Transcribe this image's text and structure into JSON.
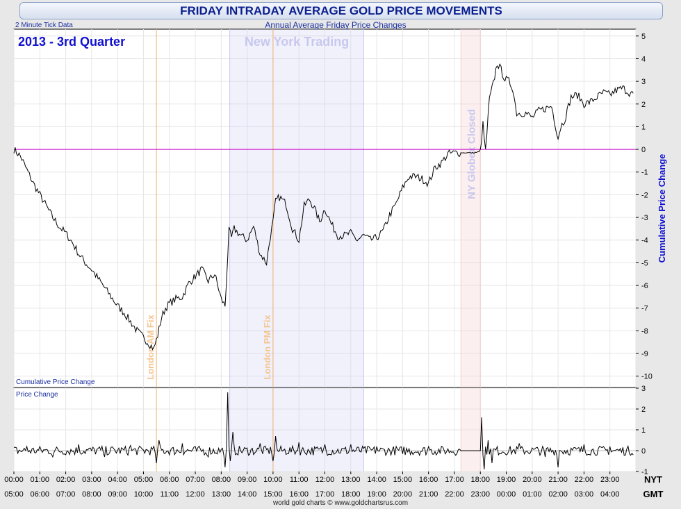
{
  "title": "FRIDAY INTRADAY AVERAGE GOLD PRICE MOVEMENTS",
  "subtitle": "Annual Average Friday Price Changes",
  "tick_note": "2 Minute Tick Data",
  "period_label": "2013 - 3rd Quarter",
  "footer": "world gold charts © www.goldchartsrus.com",
  "tz_top": "NYT",
  "tz_bottom": "GMT",
  "colors": {
    "line": "#000000",
    "zero": "#cc00cc",
    "ny": "#c8c8f0",
    "fix": "#f0b070",
    "globex": "#f0d0d0"
  },
  "bands": [
    {
      "label": "New York Trading",
      "start": 8.33,
      "end": 13.5
    },
    {
      "label": "NY Globex Closed",
      "start": 17.25,
      "end": 18.0
    }
  ],
  "fixes": [
    {
      "label": "London AM Fix",
      "time": 5.5
    },
    {
      "label": "London PM Fix",
      "time": 10.0
    }
  ],
  "nyt_ticks": [
    "00:00",
    "01:00",
    "02:00",
    "03:00",
    "04:00",
    "05:00",
    "06:00",
    "07:00",
    "08:00",
    "09:00",
    "10:00",
    "11:00",
    "12:00",
    "13:00",
    "14:00",
    "15:00",
    "16:00",
    "17:00",
    "18:00",
    "19:00",
    "20:00",
    "21:00",
    "22:00",
    "23:00"
  ],
  "gmt_ticks": [
    "05:00",
    "06:00",
    "07:00",
    "08:00",
    "09:00",
    "10:00",
    "11:00",
    "12:00",
    "13:00",
    "14:00",
    "15:00",
    "16:00",
    "17:00",
    "18:00",
    "19:00",
    "20:00",
    "21:00",
    "22:00",
    "23:00",
    "00:00",
    "01:00",
    "02:00",
    "03:00",
    "04:00"
  ],
  "chart_data": [
    {
      "type": "line",
      "title": "Cumulative Price Change",
      "ylabel": "Cumulative Price Change",
      "xlim": [
        0,
        24
      ],
      "ylim": [
        -10.5,
        5.3
      ],
      "yticks": [
        5,
        4,
        3,
        2,
        1,
        0,
        -1,
        -2,
        -3,
        -4,
        -5,
        -6,
        -7,
        -8,
        -9,
        -10
      ],
      "x": [
        0,
        0.25,
        0.5,
        0.75,
        1,
        1.25,
        1.5,
        1.75,
        2,
        2.25,
        2.5,
        2.75,
        3,
        3.25,
        3.5,
        3.75,
        4,
        4.25,
        4.5,
        4.75,
        5,
        5.25,
        5.4,
        5.55,
        5.7,
        5.85,
        6,
        6.25,
        6.5,
        6.75,
        7,
        7.25,
        7.5,
        7.75,
        8,
        8.15,
        8.3,
        8.4,
        8.5,
        8.75,
        9,
        9.25,
        9.5,
        9.75,
        9.9,
        10,
        10.1,
        10.25,
        10.5,
        10.75,
        11,
        11.2,
        11.4,
        11.6,
        11.8,
        12,
        12.25,
        12.5,
        12.75,
        13,
        13.25,
        13.5,
        13.75,
        14,
        14.25,
        14.5,
        14.75,
        15,
        15.25,
        15.5,
        15.75,
        16,
        16.25,
        16.5,
        16.75,
        17,
        17.25,
        17.5,
        17.75,
        18,
        18.1,
        18.2,
        18.35,
        18.5,
        18.65,
        18.8,
        18.95,
        19.1,
        19.25,
        19.4,
        19.5,
        19.75,
        20,
        20.25,
        20.5,
        20.75,
        21,
        21.1,
        21.25,
        21.5,
        21.75,
        22,
        22.25,
        22.5,
        22.75,
        23,
        23.25,
        23.5,
        23.75,
        23.95
      ],
      "values": [
        0,
        -0.3,
        -0.9,
        -1.5,
        -2.0,
        -2.5,
        -3.0,
        -3.4,
        -3.7,
        -4.1,
        -4.6,
        -5.0,
        -5.3,
        -5.7,
        -6.1,
        -6.5,
        -6.9,
        -7.2,
        -7.6,
        -8.0,
        -8.3,
        -8.6,
        -8.8,
        -8.2,
        -7.4,
        -7.0,
        -6.8,
        -6.6,
        -6.5,
        -5.9,
        -5.6,
        -5.3,
        -5.8,
        -5.5,
        -6.6,
        -6.9,
        -3.6,
        -3.9,
        -3.5,
        -3.8,
        -4.0,
        -3.4,
        -4.6,
        -5.0,
        -3.8,
        -3.2,
        -2.3,
        -2.1,
        -2.4,
        -3.5,
        -4.0,
        -2.5,
        -2.2,
        -2.6,
        -3.2,
        -2.6,
        -3.3,
        -3.8,
        -3.8,
        -3.7,
        -4.0,
        -3.8,
        -4.0,
        -3.9,
        -3.6,
        -2.9,
        -2.4,
        -1.7,
        -1.2,
        -1.2,
        -1.3,
        -1.5,
        -0.8,
        -0.6,
        -0.2,
        -0.15,
        -0.15,
        -0.15,
        -0.15,
        -0.1,
        1.1,
        -0.1,
        2.2,
        2.9,
        3.8,
        3.5,
        3.1,
        3.0,
        2.7,
        1.6,
        1.6,
        1.6,
        1.4,
        1.7,
        1.8,
        1.9,
        0.5,
        1.0,
        1.3,
        2.3,
        2.4,
        2.0,
        2.1,
        2.3,
        2.5,
        2.4,
        2.6,
        2.7,
        2.5,
        2.4
      ],
      "annotations": [
        "New York Trading",
        "NY Globex Closed",
        "London AM Fix",
        "London PM Fix"
      ]
    },
    {
      "type": "line",
      "title": "Price Change",
      "xlim": [
        0,
        24
      ],
      "ylim": [
        -1,
        3
      ],
      "yticks": [
        3,
        2,
        1,
        0,
        -1
      ],
      "x": [
        0.5,
        1.5,
        2.5,
        3.5,
        4.5,
        5.5,
        5.6,
        6.5,
        7.5,
        8.15,
        8.25,
        8.35,
        8.45,
        9.5,
        10.0,
        10.1,
        11.0,
        12.0,
        13.0,
        14.0,
        15.0,
        16.0,
        17.25,
        18.0,
        18.05,
        18.15,
        18.3,
        18.45,
        19.5,
        20.5,
        21.0,
        22.0,
        23.0
      ],
      "values": [
        0.2,
        -0.3,
        0.3,
        -0.3,
        0.25,
        -0.6,
        0.5,
        0.35,
        -0.3,
        -0.8,
        2.8,
        -0.5,
        0.9,
        0.35,
        -0.5,
        0.7,
        0.4,
        0.3,
        0.3,
        0.2,
        -0.15,
        0.2,
        0,
        0,
        1.6,
        -0.9,
        0.5,
        -0.6,
        0.35,
        -0.3,
        -0.8,
        0.3,
        0.2
      ]
    }
  ]
}
